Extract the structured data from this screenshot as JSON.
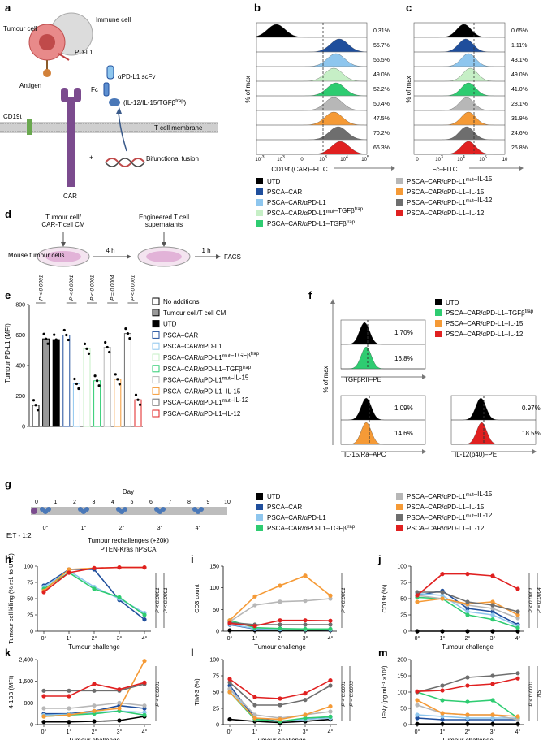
{
  "colors": {
    "UTD": "#000000",
    "PSCA-CAR": "#1f4e9c",
    "aPDL1": "#8ec6ee",
    "mutTGF": "#c6efc6",
    "TGF": "#2ecc71",
    "mutIL15": "#b7b7b7",
    "IL15": "#f59a36",
    "mutIL12": "#6e6e6e",
    "IL12": "#e02020",
    "car": "#7b4b8e",
    "tumour": "#e88a8a",
    "immune": "#cccccc",
    "green": "#4caf50",
    "axis": "#555555"
  },
  "panel_a": {
    "label": "a",
    "tumour_cell": "Tumour cell",
    "immune_cell": "Immune cell",
    "pdl1": "PD-L1",
    "antigen": "Antigen",
    "scfv": "αPD-L1 scFv",
    "fc": "Fc",
    "payload": "(IL-12/IL-15/TGFβ",
    "payload_sup": "trap",
    "payload_end": ")",
    "cd19t": "CD19t",
    "membrane": "T cell membrane",
    "fusion": "Bifunctional fusion",
    "car": "CAR",
    "plus": "+"
  },
  "panel_b": {
    "label": "b",
    "ylabel": "% of max",
    "xlabel": "CD19t (CAR)–FITC",
    "percents": [
      "0.31%",
      "55.7%",
      "55.5%",
      "49.0%",
      "52.2%",
      "50.4%",
      "47.5%",
      "70.2%",
      "66.3%"
    ],
    "ticks": [
      "10",
      "10",
      "0",
      "10",
      "10",
      "10"
    ],
    "tick_exps": [
      "-3",
      "3",
      "",
      "3",
      "4",
      "5"
    ]
  },
  "panel_c": {
    "label": "c",
    "ylabel": "% of max",
    "xlabel": "Fc–FITC",
    "percents": [
      "0.65%",
      "1.11%",
      "43.1%",
      "49.0%",
      "41.0%",
      "28.1%",
      "31.9%",
      "24.6%",
      "26.8%"
    ],
    "ticks": [
      "0",
      "10",
      "10",
      "10",
      "10"
    ],
    "tick_exps": [
      "",
      "3",
      "4",
      "5",
      ""
    ]
  },
  "legend_top": {
    "left": [
      {
        "key": "UTD",
        "label": "UTD"
      },
      {
        "key": "PSCA-CAR",
        "label": "PSCA–CAR"
      },
      {
        "key": "aPDL1",
        "label": "PSCA–CAR/αPD-L1"
      },
      {
        "key": "mutTGF",
        "label": "PSCA–CAR/αPD-L1mut–TGFβtrap"
      },
      {
        "key": "TGF",
        "label": "PSCA–CAR/αPD-L1–TGFβtrap"
      }
    ],
    "right": [
      {
        "key": "mutIL15",
        "label": "PSCA–CAR/αPD-L1mut–IL-15"
      },
      {
        "key": "IL15",
        "label": "PSCA–CAR/αPD-L1–IL-15"
      },
      {
        "key": "mutIL12",
        "label": "PSCA–CAR/αPD-L1mut–IL-12"
      },
      {
        "key": "IL12",
        "label": "PSCA–CAR/αPD-L1–IL-12"
      }
    ]
  },
  "panel_d": {
    "label": "d",
    "cm": "Tumour cell/\nCAR-T cell CM",
    "supernatants": "Engineered T cell\nsupernatants",
    "mouse": "Mouse\ntumour cells",
    "t1": "4 h",
    "t2": "1 h",
    "facs": "FACS"
  },
  "panel_e": {
    "label": "e",
    "ylabel": "Tumour PD-L1 (MFI)",
    "yticks": [
      "0",
      "200",
      "400",
      "600",
      "800"
    ],
    "pvalues": [
      "P < 0.0001",
      "P < 0.0001",
      "P < 0.0001",
      "P = 0.0004",
      "P < 0.0001"
    ],
    "legend": [
      "No additions",
      "Tumour cell/T cell CM",
      "UTD",
      "PSCA–CAR",
      "PSCA–CAR/αPD-L1",
      "PSCA–CAR/αPD-L1mut–TGFβtrap",
      "PSCA–CAR/αPD-L1–TGFβtrap",
      "PSCA–CAR/αPD-L1mut–IL-15",
      "PSCA–CAR/αPD-L1–IL-15",
      "PSCA–CAR/αPD-L1mut–IL-12",
      "PSCA–CAR/αPD-L1–IL-12"
    ]
  },
  "panel_f": {
    "label": "f",
    "ylabel": "% of max",
    "legend": [
      {
        "key": "UTD",
        "label": "UTD"
      },
      {
        "key": "TGF",
        "label": "PSCA–CAR/αPD-L1–TGFβtrap"
      },
      {
        "key": "IL15",
        "label": "PSCA–CAR/αPD-L1–IL-15"
      },
      {
        "key": "IL12",
        "label": "PSCA–CAR/αPD-L1–IL-12"
      }
    ],
    "tgf": {
      "xlabel": "TGFβRII–PE",
      "p1": "1.70%",
      "p2": "16.8%"
    },
    "il15": {
      "xlabel": "IL-15/Ra–APC",
      "p1": "1.09%",
      "p2": "14.6%"
    },
    "il12": {
      "xlabel": "IL-12(p40)–PE",
      "p1": "0.97%",
      "p2": "18.5%"
    }
  },
  "panel_g": {
    "label": "g",
    "day": "Day",
    "days": [
      "0",
      "1",
      "2",
      "3",
      "4",
      "5",
      "6",
      "7",
      "8",
      "9",
      "10"
    ],
    "challenges": [
      "0°",
      "1°",
      "2°",
      "3°",
      "4°"
    ],
    "et": "E:T - 1:2",
    "rechallenge": "Tumour rechallenges (+20k)",
    "model": "PTEN-Kras hPSCA"
  },
  "legend_g": {
    "left": [
      {
        "key": "UTD",
        "label": "UTD"
      },
      {
        "key": "PSCA-CAR",
        "label": "PSCA–CAR"
      },
      {
        "key": "aPDL1",
        "label": "PSCA–CAR/αPD-L1"
      },
      {
        "key": "TGF",
        "label": "PSCA–CAR/αPD-L1–TGFβtrap"
      }
    ],
    "right": [
      {
        "key": "mutIL15",
        "label": "PSCA–CAR/αPD-L1mut–IL-15"
      },
      {
        "key": "IL15",
        "label": "PSCA–CAR/αPD-L1–IL-15"
      },
      {
        "key": "mutIL12",
        "label": "PSCA–CAR/αPD-L1mut–IL-12"
      },
      {
        "key": "IL12",
        "label": "PSCA–CAR/αPD-L1–IL-12"
      }
    ]
  },
  "chart_data": [
    {
      "type": "bar",
      "id": "e",
      "title": "",
      "ylabel": "Tumour PD-L1 (MFI)",
      "ylim": [
        0,
        800
      ],
      "categories": [
        "No additions",
        "Tumour cell/T cell CM",
        "UTD",
        "PSCA–CAR",
        "PSCA–CAR/αPD-L1",
        "PSCA–CAR/αPD-L1mut–TGFβtrap",
        "PSCA–CAR/αPD-L1–TGFβtrap",
        "PSCA–CAR/αPD-L1mut–IL-15",
        "PSCA–CAR/αPD-L1–IL-15",
        "PSCA–CAR/αPD-L1mut–IL-12",
        "PSCA–CAR/αPD-L1–IL-12"
      ],
      "values": [
        140,
        575,
        570,
        600,
        280,
        510,
        300,
        520,
        310,
        610,
        175
      ]
    },
    {
      "type": "line",
      "id": "h",
      "xlabel": "Tumour challenge",
      "ylabel": "Tumour cell killing (% rel. to UTD)",
      "ylim": [
        0,
        100
      ],
      "yticks": [
        "0",
        "25",
        "50",
        "75",
        "100"
      ],
      "x": [
        "0°",
        "1°",
        "2°",
        "3°",
        "4°"
      ],
      "pvalues": [
        "P < 0.0001",
        "P < 0.0001"
      ],
      "series": [
        {
          "key": "PSCA-CAR",
          "values": [
            70,
            95,
            95,
            48,
            18
          ]
        },
        {
          "key": "aPDL1",
          "values": [
            68,
            93,
            68,
            50,
            28
          ]
        },
        {
          "key": "TGF",
          "values": [
            65,
            90,
            65,
            52,
            25
          ]
        },
        {
          "key": "IL15",
          "values": [
            62,
            95,
            97,
            98,
            98
          ]
        },
        {
          "key": "IL12",
          "values": [
            60,
            90,
            97,
            98,
            98
          ]
        }
      ]
    },
    {
      "type": "line",
      "id": "i",
      "xlabel": "Tumour challenge",
      "ylabel": "CD3 count",
      "ylim": [
        0,
        150
      ],
      "yticks": [
        "0",
        "50",
        "100",
        "150"
      ],
      "x": [
        "0°",
        "1°",
        "2°",
        "3°",
        "4°"
      ],
      "pvalues": [
        "P < 0.0001"
      ],
      "series": [
        {
          "key": "UTD",
          "values": [
            2,
            2,
            2,
            2,
            2
          ]
        },
        {
          "key": "PSCA-CAR",
          "values": [
            15,
            5,
            4,
            4,
            3
          ]
        },
        {
          "key": "aPDL1",
          "values": [
            16,
            6,
            5,
            4,
            4
          ]
        },
        {
          "key": "TGF",
          "values": [
            25,
            8,
            6,
            5,
            5
          ]
        },
        {
          "key": "mutIL15",
          "values": [
            22,
            60,
            68,
            70,
            75
          ]
        },
        {
          "key": "IL15",
          "values": [
            25,
            80,
            105,
            128,
            82
          ]
        },
        {
          "key": "mutIL12",
          "values": [
            20,
            15,
            15,
            15,
            15
          ]
        },
        {
          "key": "IL12",
          "values": [
            18,
            12,
            25,
            25,
            24
          ]
        }
      ]
    },
    {
      "type": "line",
      "id": "j",
      "xlabel": "Tumour challenge",
      "ylabel": "CD19t (%)",
      "ylim": [
        0,
        100
      ],
      "yticks": [
        "0",
        "25",
        "50",
        "75",
        "100"
      ],
      "x": [
        "0°",
        "1°",
        "2°",
        "3°",
        "4°"
      ],
      "pvalues": [
        "P < 0.0001",
        "P = 0.0004"
      ],
      "series": [
        {
          "key": "UTD",
          "values": [
            0,
            0,
            0,
            0,
            0
          ]
        },
        {
          "key": "PSCA-CAR",
          "values": [
            55,
            62,
            35,
            30,
            10
          ]
        },
        {
          "key": "aPDL1",
          "values": [
            58,
            55,
            30,
            25,
            8
          ]
        },
        {
          "key": "TGF",
          "values": [
            52,
            50,
            25,
            18,
            5
          ]
        },
        {
          "key": "mutIL15",
          "values": [
            55,
            50,
            40,
            35,
            20
          ]
        },
        {
          "key": "IL15",
          "values": [
            45,
            50,
            42,
            45,
            25
          ]
        },
        {
          "key": "mutIL12",
          "values": [
            60,
            60,
            45,
            40,
            30
          ]
        },
        {
          "key": "IL12",
          "values": [
            55,
            88,
            88,
            85,
            65
          ]
        }
      ]
    },
    {
      "type": "line",
      "id": "k",
      "xlabel": "Tumour challenge",
      "ylabel": "4-1BB (MFI)",
      "ylim": [
        0,
        2400
      ],
      "yticks": [
        "0",
        "800",
        "1,600",
        "2,400"
      ],
      "x": [
        "0°",
        "1°",
        "2°",
        "3°",
        "4°"
      ],
      "pvalues": [
        "P < 0.0001"
      ],
      "series": [
        {
          "key": "UTD",
          "values": [
            100,
            100,
            120,
            150,
            300
          ]
        },
        {
          "key": "PSCA-CAR",
          "values": [
            400,
            400,
            500,
            700,
            600
          ]
        },
        {
          "key": "aPDL1",
          "values": [
            350,
            380,
            450,
            500,
            450
          ]
        },
        {
          "key": "TGF",
          "values": [
            300,
            350,
            400,
            500,
            350
          ]
        },
        {
          "key": "mutIL15",
          "values": [
            600,
            600,
            700,
            800,
            700
          ]
        },
        {
          "key": "IL15",
          "values": [
            300,
            350,
            500,
            600,
            2350
          ]
        },
        {
          "key": "mutIL12",
          "values": [
            1250,
            1250,
            1250,
            1250,
            1500
          ]
        },
        {
          "key": "IL12",
          "values": [
            1050,
            1050,
            1500,
            1300,
            1550
          ]
        }
      ]
    },
    {
      "type": "line",
      "id": "l",
      "xlabel": "Tumour challenge",
      "ylabel": "TIM-3 (%)",
      "ylim": [
        0,
        100
      ],
      "yticks": [
        "0",
        "25",
        "50",
        "75",
        "100"
      ],
      "x": [
        "0°",
        "1°",
        "2°",
        "3°",
        "4°"
      ],
      "pvalues": [
        "P < 0.0001",
        "P = 0.0003"
      ],
      "series": [
        {
          "key": "UTD",
          "values": [
            8,
            5,
            3,
            5,
            8
          ]
        },
        {
          "key": "PSCA-CAR",
          "values": [
            60,
            10,
            5,
            8,
            12
          ]
        },
        {
          "key": "aPDL1",
          "values": [
            55,
            8,
            5,
            8,
            10
          ]
        },
        {
          "key": "TGF",
          "values": [
            50,
            8,
            5,
            10,
            12
          ]
        },
        {
          "key": "mutIL15",
          "values": [
            55,
            15,
            10,
            15,
            20
          ]
        },
        {
          "key": "IL15",
          "values": [
            50,
            10,
            8,
            15,
            28
          ]
        },
        {
          "key": "mutIL12",
          "values": [
            65,
            30,
            30,
            38,
            60
          ]
        },
        {
          "key": "IL12",
          "values": [
            70,
            42,
            40,
            48,
            68
          ]
        }
      ]
    },
    {
      "type": "line",
      "id": "m",
      "xlabel": "Tumour challenge",
      "ylabel": "IFNγ (pg ml⁻¹ ×10³)",
      "ylim": [
        0,
        200
      ],
      "yticks": [
        "0",
        "50",
        "100",
        "150",
        "200"
      ],
      "x": [
        "0°",
        "1°",
        "2°",
        "3°",
        "4°"
      ],
      "pvalues": [
        "P < 0.0001",
        "NS"
      ],
      "series": [
        {
          "key": "UTD",
          "values": [
            2,
            2,
            2,
            2,
            2
          ]
        },
        {
          "key": "PSCA-CAR",
          "values": [
            20,
            15,
            15,
            15,
            15
          ]
        },
        {
          "key": "aPDL1",
          "values": [
            30,
            25,
            20,
            20,
            20
          ]
        },
        {
          "key": "TGF",
          "values": [
            100,
            75,
            70,
            75,
            20
          ]
        },
        {
          "key": "mutIL15",
          "values": [
            60,
            35,
            30,
            30,
            15
          ]
        },
        {
          "key": "IL15",
          "values": [
            75,
            35,
            30,
            30,
            25
          ]
        },
        {
          "key": "mutIL12",
          "values": [
            100,
            120,
            145,
            150,
            158
          ]
        },
        {
          "key": "IL12",
          "values": [
            102,
            105,
            120,
            125,
            142
          ]
        }
      ]
    }
  ]
}
